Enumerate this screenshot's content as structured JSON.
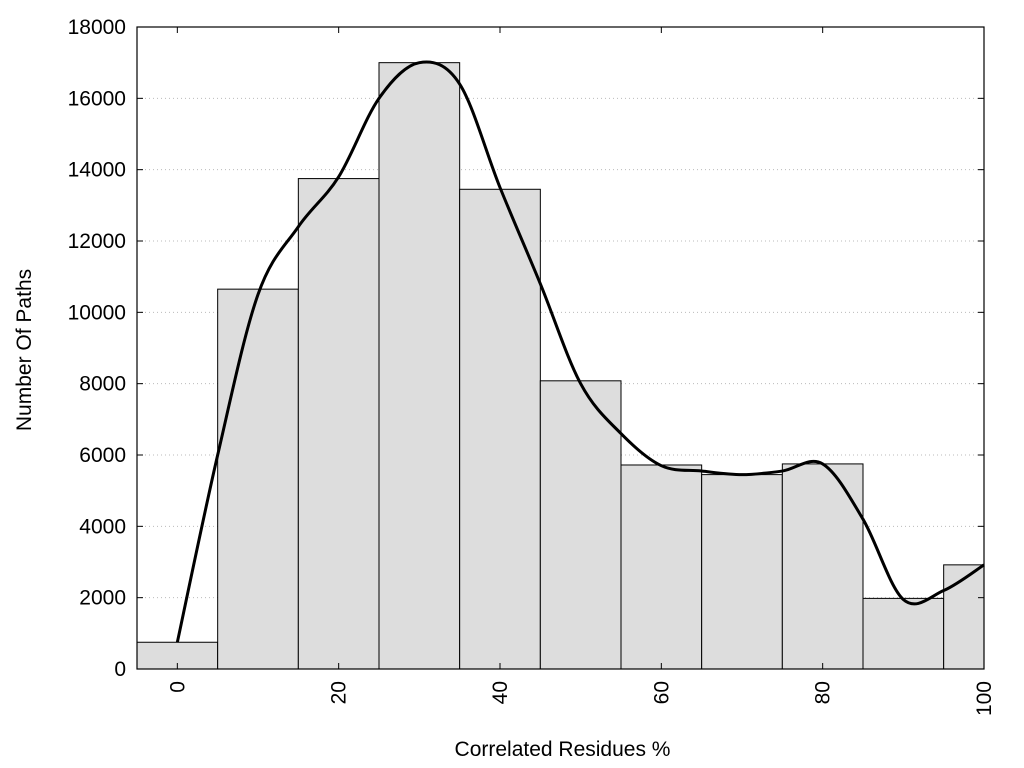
{
  "chart_data": {
    "type": "bar",
    "title": "",
    "xlabel": "Correlated Residues %",
    "ylabel": "Number Of Paths",
    "xlim": [
      -5,
      100
    ],
    "ylim": [
      0,
      18000
    ],
    "x_ticks": [
      0,
      20,
      40,
      60,
      80,
      100
    ],
    "y_ticks": [
      0,
      2000,
      4000,
      6000,
      8000,
      10000,
      12000,
      14000,
      16000,
      18000
    ],
    "grid": "horizontal-dotted",
    "legend": "none",
    "bin_width": 10,
    "bins": [
      0,
      10,
      20,
      30,
      40,
      50,
      60,
      70,
      80,
      90,
      100
    ],
    "values": [
      750,
      10650,
      13750,
      17000,
      13450,
      8080,
      5720,
      5450,
      5750,
      1980,
      2920
    ],
    "bar_color": "#dddddd",
    "curve": {
      "x": [
        0,
        5,
        10,
        15,
        20,
        25,
        30,
        35,
        40,
        45,
        50,
        55,
        60,
        65,
        70,
        75,
        80,
        85,
        90,
        95,
        100
      ],
      "y": [
        750,
        6000,
        10500,
        12400,
        13800,
        16000,
        17000,
        16400,
        13500,
        10800,
        8000,
        6600,
        5700,
        5550,
        5450,
        5550,
        5750,
        4200,
        1950,
        2200,
        2920
      ]
    }
  }
}
